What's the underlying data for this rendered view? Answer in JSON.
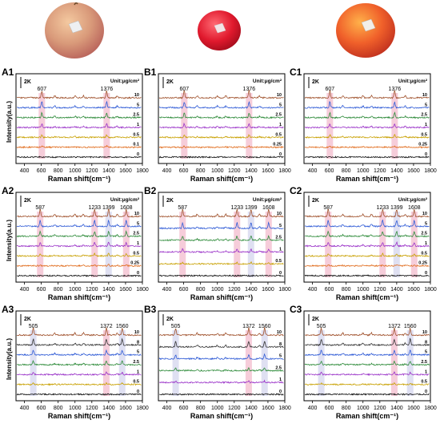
{
  "colors": {
    "axis": "#000000",
    "highlight_pink": "#f4c4d3",
    "highlight_lavender": "#d9dbf0",
    "series": {
      "10": "#a0522d",
      "5": "#2f5bd6",
      "2.5": "#2e8b3a",
      "1": "#9a32c8",
      "0.5": "#c8a000",
      "0.25": "#e06a1a",
      "0.1": "#e06a1a",
      "0": "#111111"
    }
  },
  "icons": [
    "apple-photo-1",
    "apple-photo-2",
    "apple-photo-3"
  ],
  "chart_data": [
    {
      "id": "A1",
      "type": "line",
      "label": "A1",
      "xlabel": "Raman shift(cm⁻¹)",
      "ylabel": "Intensity(a.u.)",
      "xticks": [
        400,
        600,
        800,
        1000,
        1200,
        1400,
        1600,
        1800
      ],
      "xlim": [
        300,
        1800
      ],
      "unit": "Unit:μg/cm²",
      "scale_bar": "2K",
      "peaks": [
        {
          "x": 607,
          "label": "607",
          "color": "pink"
        },
        {
          "x": 1376,
          "label": "1376",
          "color": "pink"
        }
      ],
      "series": [
        {
          "name": "10"
        },
        {
          "name": "5"
        },
        {
          "name": "2.5"
        },
        {
          "name": "1"
        },
        {
          "name": "0.5"
        },
        {
          "name": "0.1"
        },
        {
          "name": "0"
        }
      ]
    },
    {
      "id": "B1",
      "type": "line",
      "label": "B1",
      "xlabel": "Raman shift(cm⁻¹)",
      "ylabel": "",
      "xticks": [
        400,
        600,
        800,
        1000,
        1200,
        1400,
        1600,
        1800
      ],
      "xlim": [
        300,
        1800
      ],
      "unit": "Unit:μg/cm²",
      "scale_bar": "2K",
      "peaks": [
        {
          "x": 607,
          "label": "607",
          "color": "pink"
        },
        {
          "x": 1376,
          "label": "1376",
          "color": "pink"
        }
      ],
      "series": [
        {
          "name": "10"
        },
        {
          "name": "5"
        },
        {
          "name": "2.5"
        },
        {
          "name": "1"
        },
        {
          "name": "0.5"
        },
        {
          "name": "0.25"
        },
        {
          "name": "0"
        }
      ]
    },
    {
      "id": "C1",
      "type": "line",
      "label": "C1",
      "xlabel": "Raman shift(cm⁻¹)",
      "ylabel": "",
      "xticks": [
        400,
        600,
        800,
        1000,
        1200,
        1400,
        1600,
        1800
      ],
      "xlim": [
        300,
        1800
      ],
      "unit": "Unit:μg/cm²",
      "scale_bar": "2K",
      "peaks": [
        {
          "x": 607,
          "label": "607",
          "color": "pink"
        },
        {
          "x": 1376,
          "label": "1376",
          "color": "pink"
        }
      ],
      "series": [
        {
          "name": "10"
        },
        {
          "name": "5"
        },
        {
          "name": "2.5"
        },
        {
          "name": "1"
        },
        {
          "name": "0.5"
        },
        {
          "name": "0.25"
        },
        {
          "name": "0"
        }
      ]
    },
    {
      "id": "A2",
      "type": "line",
      "label": "A2",
      "xlabel": "Raman shift(cm⁻¹)",
      "ylabel": "Intensity(a.u.)",
      "xticks": [
        400,
        600,
        800,
        1000,
        1200,
        1400,
        1600,
        1800
      ],
      "xlim": [
        300,
        1800
      ],
      "unit": "Unit:μg/cm²",
      "scale_bar": "2K",
      "peaks": [
        {
          "x": 587,
          "label": "587",
          "color": "pink"
        },
        {
          "x": 1233,
          "label": "1233",
          "color": "pink"
        },
        {
          "x": 1399,
          "label": "1399",
          "color": "lavender"
        },
        {
          "x": 1608,
          "label": "1608",
          "color": "pink"
        }
      ],
      "series": [
        {
          "name": "10"
        },
        {
          "name": "5"
        },
        {
          "name": "2.5"
        },
        {
          "name": "1"
        },
        {
          "name": "0.5"
        },
        {
          "name": "0.25"
        },
        {
          "name": "0"
        }
      ]
    },
    {
      "id": "B2",
      "type": "line",
      "label": "B2",
      "xlabel": "Raman shift(cm⁻¹)",
      "ylabel": "",
      "xticks": [
        400,
        600,
        800,
        1000,
        1200,
        1400,
        1600,
        1800
      ],
      "xlim": [
        300,
        1800
      ],
      "unit": "Unit:μg/cm²",
      "scale_bar": "2K",
      "peaks": [
        {
          "x": 587,
          "label": "587",
          "color": "pink"
        },
        {
          "x": 1233,
          "label": "1233",
          "color": "pink"
        },
        {
          "x": 1399,
          "label": "1399",
          "color": "lavender"
        },
        {
          "x": 1608,
          "label": "1608",
          "color": "pink"
        }
      ],
      "series": [
        {
          "name": "10"
        },
        {
          "name": "5"
        },
        {
          "name": "2.5"
        },
        {
          "name": "1"
        },
        {
          "name": "0.5"
        },
        {
          "name": "0"
        }
      ]
    },
    {
      "id": "C2",
      "type": "line",
      "label": "C2",
      "xlabel": "Raman shift(cm⁻¹)",
      "ylabel": "",
      "xticks": [
        400,
        600,
        800,
        1000,
        1200,
        1400,
        1600,
        1800
      ],
      "xlim": [
        300,
        1800
      ],
      "unit": "Unit:μg/cm²",
      "scale_bar": "2K",
      "peaks": [
        {
          "x": 587,
          "label": "587",
          "color": "pink"
        },
        {
          "x": 1233,
          "label": "1233",
          "color": "pink"
        },
        {
          "x": 1399,
          "label": "1399",
          "color": "lavender"
        },
        {
          "x": 1608,
          "label": "1608",
          "color": "pink"
        }
      ],
      "series": [
        {
          "name": "10"
        },
        {
          "name": "5"
        },
        {
          "name": "2.5"
        },
        {
          "name": "1"
        },
        {
          "name": "0.5"
        },
        {
          "name": "0.25"
        },
        {
          "name": "0"
        }
      ]
    },
    {
      "id": "A3",
      "type": "line",
      "label": "A3",
      "xlabel": "Raman shift(cm⁻¹)",
      "ylabel": "Intensity(a.u.)",
      "xticks": [
        400,
        600,
        800,
        1000,
        1200,
        1400,
        1600,
        1800
      ],
      "xlim": [
        300,
        1800
      ],
      "unit": "",
      "scale_bar": "2K",
      "peaks": [
        {
          "x": 505,
          "label": "505",
          "color": "lavender"
        },
        {
          "x": 1372,
          "label": "1372",
          "color": "pink"
        },
        {
          "x": 1560,
          "label": "1560",
          "color": "lavender"
        }
      ],
      "series": [
        {
          "name": "10"
        },
        {
          "name": "8"
        },
        {
          "name": "5"
        },
        {
          "name": "2.5"
        },
        {
          "name": "1"
        },
        {
          "name": "0.5"
        },
        {
          "name": "0"
        }
      ]
    },
    {
      "id": "B3",
      "type": "line",
      "label": "B3",
      "xlabel": "Raman shift(cm⁻¹)",
      "ylabel": "",
      "xticks": [
        400,
        600,
        800,
        1000,
        1200,
        1400,
        1600,
        1800
      ],
      "xlim": [
        300,
        1800
      ],
      "unit": "",
      "scale_bar": "2K",
      "peaks": [
        {
          "x": 505,
          "label": "505",
          "color": "lavender"
        },
        {
          "x": 1372,
          "label": "1372",
          "color": "pink"
        },
        {
          "x": 1560,
          "label": "1560",
          "color": "lavender"
        }
      ],
      "series": [
        {
          "name": "10"
        },
        {
          "name": "8"
        },
        {
          "name": "5"
        },
        {
          "name": "2.5"
        },
        {
          "name": "1"
        },
        {
          "name": "0"
        }
      ]
    },
    {
      "id": "C3",
      "type": "line",
      "label": "C3",
      "xlabel": "Raman shift(cm⁻¹)",
      "ylabel": "",
      "xticks": [
        400,
        600,
        800,
        1000,
        1200,
        1400,
        1600,
        1800
      ],
      "xlim": [
        300,
        1800
      ],
      "unit": "",
      "scale_bar": "2K",
      "peaks": [
        {
          "x": 505,
          "label": "505",
          "color": "lavender"
        },
        {
          "x": 1372,
          "label": "1372",
          "color": "pink"
        },
        {
          "x": 1560,
          "label": "1560",
          "color": "lavender"
        }
      ],
      "series": [
        {
          "name": "10"
        },
        {
          "name": "8"
        },
        {
          "name": "5"
        },
        {
          "name": "2.5"
        },
        {
          "name": "1"
        },
        {
          "name": "0.5"
        },
        {
          "name": "0"
        }
      ]
    }
  ]
}
